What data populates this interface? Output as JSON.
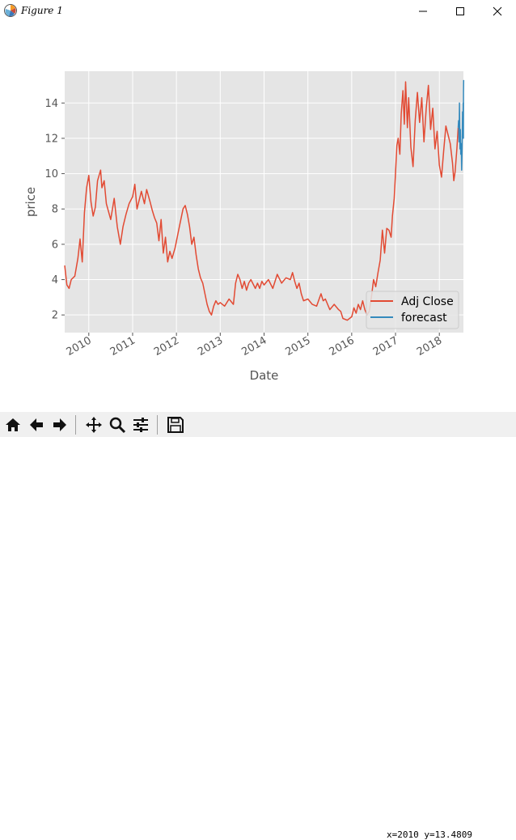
{
  "window": {
    "title": "Figure 1"
  },
  "colors": {
    "adj_close": "#e24a33",
    "forecast": "#348abd",
    "axes_bg": "#e5e5e5",
    "grid": "#ffffff"
  },
  "toolbar": {
    "buttons": [
      "home-icon",
      "back-arrow-icon",
      "forward-arrow-icon",
      "pan-move-icon",
      "zoom-magnifier-icon",
      "configure-subplots-icon",
      "save-disk-icon"
    ],
    "coordinates": "x=2010 y=13.4809"
  },
  "chart_data": {
    "type": "line",
    "title": "",
    "xlabel": "Date",
    "ylabel": "price",
    "x_unit": "year",
    "xlim": [
      2009.45,
      2018.55
    ],
    "ylim": [
      1.0,
      15.8
    ],
    "yticks": [
      2,
      4,
      6,
      8,
      10,
      12,
      14
    ],
    "xticks": [
      "2010",
      "2011",
      "2012",
      "2013",
      "2014",
      "2015",
      "2016",
      "2017",
      "2018"
    ],
    "grid": true,
    "legend": {
      "placement": "lower right",
      "entries": [
        "Adj Close",
        "forecast"
      ]
    },
    "series": [
      {
        "name": "Adj Close",
        "color": "#e24a33",
        "points": [
          [
            2009.45,
            4.8
          ],
          [
            2009.5,
            3.7
          ],
          [
            2009.55,
            3.5
          ],
          [
            2009.6,
            4.0
          ],
          [
            2009.68,
            4.2
          ],
          [
            2009.75,
            5.2
          ],
          [
            2009.8,
            6.3
          ],
          [
            2009.85,
            5.0
          ],
          [
            2009.9,
            7.8
          ],
          [
            2009.95,
            9.2
          ],
          [
            2010.0,
            9.9
          ],
          [
            2010.05,
            8.4
          ],
          [
            2010.1,
            7.6
          ],
          [
            2010.15,
            8.1
          ],
          [
            2010.2,
            9.6
          ],
          [
            2010.27,
            10.2
          ],
          [
            2010.3,
            9.2
          ],
          [
            2010.35,
            9.6
          ],
          [
            2010.4,
            8.3
          ],
          [
            2010.5,
            7.4
          ],
          [
            2010.58,
            8.6
          ],
          [
            2010.65,
            7.0
          ],
          [
            2010.72,
            6.0
          ],
          [
            2010.78,
            7.0
          ],
          [
            2010.85,
            7.7
          ],
          [
            2010.92,
            8.3
          ],
          [
            2011.0,
            8.7
          ],
          [
            2011.05,
            9.4
          ],
          [
            2011.1,
            8.0
          ],
          [
            2011.15,
            8.5
          ],
          [
            2011.2,
            9.0
          ],
          [
            2011.27,
            8.3
          ],
          [
            2011.32,
            9.1
          ],
          [
            2011.4,
            8.4
          ],
          [
            2011.45,
            7.9
          ],
          [
            2011.5,
            7.5
          ],
          [
            2011.55,
            7.2
          ],
          [
            2011.6,
            6.2
          ],
          [
            2011.65,
            7.4
          ],
          [
            2011.7,
            5.5
          ],
          [
            2011.75,
            6.4
          ],
          [
            2011.8,
            5.0
          ],
          [
            2011.85,
            5.6
          ],
          [
            2011.9,
            5.2
          ],
          [
            2011.97,
            5.8
          ],
          [
            2012.05,
            6.8
          ],
          [
            2012.1,
            7.4
          ],
          [
            2012.15,
            8.0
          ],
          [
            2012.2,
            8.2
          ],
          [
            2012.25,
            7.7
          ],
          [
            2012.3,
            7.0
          ],
          [
            2012.35,
            6.0
          ],
          [
            2012.4,
            6.4
          ],
          [
            2012.45,
            5.4
          ],
          [
            2012.5,
            4.6
          ],
          [
            2012.55,
            4.1
          ],
          [
            2012.6,
            3.8
          ],
          [
            2012.65,
            3.2
          ],
          [
            2012.7,
            2.6
          ],
          [
            2012.75,
            2.2
          ],
          [
            2012.8,
            2.0
          ],
          [
            2012.85,
            2.5
          ],
          [
            2012.9,
            2.8
          ],
          [
            2012.95,
            2.6
          ],
          [
            2013.0,
            2.7
          ],
          [
            2013.1,
            2.5
          ],
          [
            2013.2,
            2.9
          ],
          [
            2013.3,
            2.6
          ],
          [
            2013.35,
            3.8
          ],
          [
            2013.4,
            4.3
          ],
          [
            2013.45,
            4.0
          ],
          [
            2013.5,
            3.5
          ],
          [
            2013.55,
            3.9
          ],
          [
            2013.6,
            3.4
          ],
          [
            2013.65,
            3.8
          ],
          [
            2013.7,
            4.0
          ],
          [
            2013.8,
            3.5
          ],
          [
            2013.85,
            3.8
          ],
          [
            2013.9,
            3.5
          ],
          [
            2013.95,
            3.9
          ],
          [
            2014.0,
            3.7
          ],
          [
            2014.1,
            4.0
          ],
          [
            2014.2,
            3.5
          ],
          [
            2014.3,
            4.3
          ],
          [
            2014.4,
            3.8
          ],
          [
            2014.5,
            4.1
          ],
          [
            2014.6,
            4.0
          ],
          [
            2014.65,
            4.4
          ],
          [
            2014.7,
            3.9
          ],
          [
            2014.75,
            3.5
          ],
          [
            2014.8,
            3.8
          ],
          [
            2014.85,
            3.2
          ],
          [
            2014.9,
            2.8
          ],
          [
            2015.0,
            2.9
          ],
          [
            2015.1,
            2.6
          ],
          [
            2015.2,
            2.5
          ],
          [
            2015.3,
            3.2
          ],
          [
            2015.35,
            2.8
          ],
          [
            2015.4,
            2.9
          ],
          [
            2015.5,
            2.3
          ],
          [
            2015.6,
            2.6
          ],
          [
            2015.7,
            2.3
          ],
          [
            2015.75,
            2.2
          ],
          [
            2015.8,
            1.8
          ],
          [
            2015.9,
            1.7
          ],
          [
            2016.0,
            1.9
          ],
          [
            2016.05,
            2.4
          ],
          [
            2016.1,
            2.1
          ],
          [
            2016.15,
            2.6
          ],
          [
            2016.2,
            2.3
          ],
          [
            2016.25,
            2.8
          ],
          [
            2016.3,
            2.3
          ],
          [
            2016.35,
            2.0
          ],
          [
            2016.4,
            2.2
          ],
          [
            2016.45,
            3.0
          ],
          [
            2016.5,
            4.0
          ],
          [
            2016.55,
            3.6
          ],
          [
            2016.6,
            4.4
          ],
          [
            2016.65,
            5.1
          ],
          [
            2016.7,
            6.8
          ],
          [
            2016.75,
            5.5
          ],
          [
            2016.8,
            6.9
          ],
          [
            2016.85,
            6.8
          ],
          [
            2016.9,
            6.4
          ],
          [
            2016.93,
            7.6
          ],
          [
            2016.97,
            8.6
          ],
          [
            2017.0,
            10.0
          ],
          [
            2017.03,
            11.6
          ],
          [
            2017.06,
            12.0
          ],
          [
            2017.1,
            11.1
          ],
          [
            2017.13,
            13.4
          ],
          [
            2017.17,
            14.7
          ],
          [
            2017.2,
            12.8
          ],
          [
            2017.23,
            15.2
          ],
          [
            2017.27,
            12.6
          ],
          [
            2017.3,
            14.3
          ],
          [
            2017.35,
            11.5
          ],
          [
            2017.4,
            10.4
          ],
          [
            2017.45,
            13.0
          ],
          [
            2017.5,
            14.6
          ],
          [
            2017.55,
            12.9
          ],
          [
            2017.6,
            14.3
          ],
          [
            2017.65,
            11.8
          ],
          [
            2017.7,
            13.7
          ],
          [
            2017.75,
            15.0
          ],
          [
            2017.8,
            12.5
          ],
          [
            2017.85,
            13.7
          ],
          [
            2017.9,
            11.4
          ],
          [
            2017.95,
            12.4
          ],
          [
            2018.0,
            10.5
          ],
          [
            2018.05,
            9.8
          ],
          [
            2018.1,
            11.3
          ],
          [
            2018.15,
            12.7
          ],
          [
            2018.2,
            12.2
          ],
          [
            2018.25,
            11.7
          ],
          [
            2018.3,
            10.6
          ],
          [
            2018.33,
            9.6
          ],
          [
            2018.36,
            10.1
          ],
          [
            2018.4,
            11.4
          ],
          [
            2018.43,
            12.6
          ]
        ]
      },
      {
        "name": "forecast",
        "color": "#348abd",
        "points": [
          [
            2018.43,
            12.6
          ],
          [
            2018.44,
            13.0
          ],
          [
            2018.45,
            11.8
          ],
          [
            2018.46,
            14.0
          ],
          [
            2018.47,
            11.4
          ],
          [
            2018.48,
            12.5
          ],
          [
            2018.49,
            11.1
          ],
          [
            2018.5,
            11.7
          ],
          [
            2018.51,
            10.2
          ],
          [
            2018.515,
            10.8
          ],
          [
            2018.52,
            11.5
          ],
          [
            2018.53,
            13.5
          ],
          [
            2018.54,
            12.3
          ],
          [
            2018.545,
            14.0
          ],
          [
            2018.55,
            12.0
          ],
          [
            2018.552,
            14.6
          ],
          [
            2018.555,
            15.3
          ]
        ]
      }
    ]
  }
}
